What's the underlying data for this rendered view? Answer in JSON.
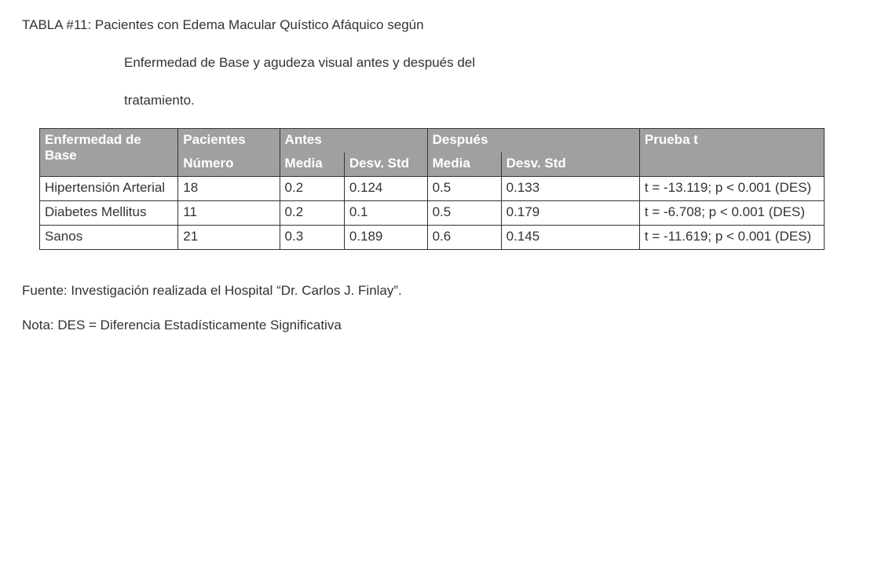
{
  "title": {
    "line1": "TABLA #11: Pacientes con Edema Macular Quístico Afáquico según",
    "line2": "Enfermedad de  Base y agudeza visual antes y después del",
    "line3": "tratamiento."
  },
  "table": {
    "header_colors": {
      "bg": "#a0a0a0",
      "fg": "#ffffff",
      "border": "#333333"
    },
    "columns": {
      "enfermedad": "Enfermedad de Base",
      "pacientes": "Pacientes",
      "numero": "Número",
      "antes": "Antes",
      "despues": "Después",
      "media": "Media",
      "desv": "Desv. Std",
      "prueba": "Prueba t"
    },
    "rows": [
      {
        "enfermedad": "Hipertensión Arterial",
        "numero": "18",
        "antes_media": "0.2",
        "antes_desv": "0.124",
        "despues_media": "0.5",
        "despues_desv": "0.133",
        "prueba": "t = -13.119; p < 0.001 (DES)"
      },
      {
        "enfermedad": "Diabetes Mellitus",
        "numero": "11",
        "antes_media": "0.2",
        "antes_desv": "0.1",
        "despues_media": "0.5",
        "despues_desv": "0.179",
        "prueba": "t = -6.708; p < 0.001 (DES)"
      },
      {
        "enfermedad": "Sanos",
        "numero": "21",
        "antes_media": "0.3",
        "antes_desv": "0.189",
        "despues_media": "0.6",
        "despues_desv": "0.145",
        "prueba": "t = -11.619; p < 0.001 (DES)"
      }
    ]
  },
  "footer": {
    "fuente": "Fuente: Investigación realizada el Hospital “Dr. Carlos J. Finlay”.",
    "nota": "Nota: DES = Diferencia Estadísticamente Significativa"
  }
}
